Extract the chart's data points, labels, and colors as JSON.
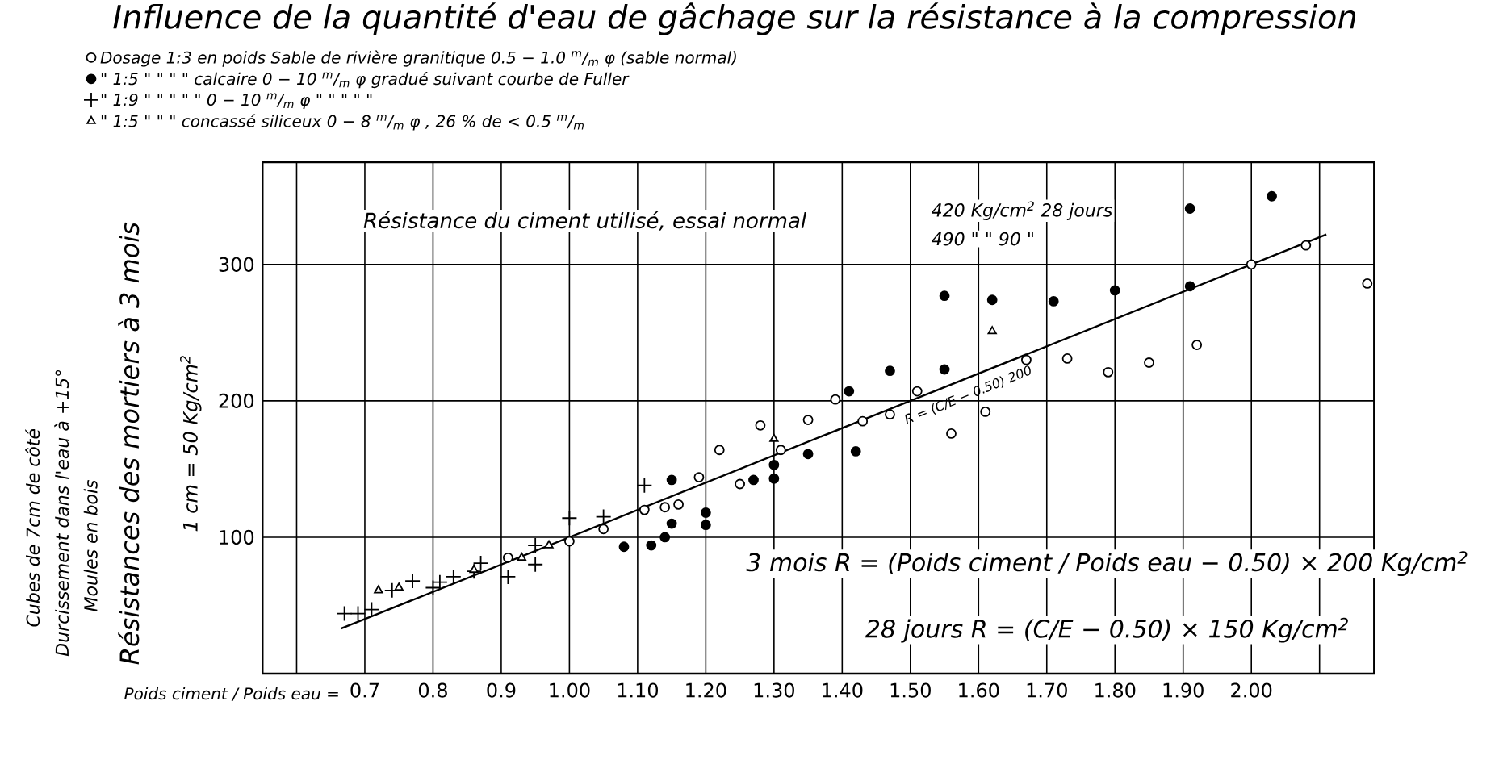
{
  "chart_data": {
    "type": "scatter",
    "title": "Influence de la quantité d'eau de gâchage sur la résistance à la compression",
    "xlabel": "Poids ciment / Poids eau =",
    "ylabel": "Résistances des mortiers à 3 mois",
    "series": [
      {
        "name": "Dosage 1:3 en poids   Sable de rivière granitique   0.5 − 1.0 $^{m}$/$_{m}$ φ   (sable normal)",
        "color": "#000000",
        "marker": "circle",
        "x": [
          0.91,
          1.0,
          1.05,
          1.11,
          1.14,
          1.16,
          1.19,
          1.22,
          1.25,
          1.28,
          1.31,
          1.35,
          1.39,
          1.43,
          1.47,
          1.51,
          1.56,
          1.61,
          1.67,
          1.73,
          1.79,
          1.85,
          1.92,
          2.0,
          2.08,
          2.17
        ],
        "values": [
          85,
          97,
          106,
          120,
          122,
          124,
          144,
          164,
          139,
          182,
          164,
          186,
          201,
          185,
          190,
          207,
          176,
          192,
          230,
          231,
          221,
          228,
          241,
          300,
          314,
          286
        ]
      },
      {
        "name": "\"   1:5   \"   \"   \"   \"   calcaire   0 − 10 $^{m}$/$_{m}$ φ   gradué suivant courbe de Fuller",
        "color": "#000000",
        "marker": "circle",
        "x": [
          1.08,
          1.12,
          1.14,
          1.15,
          1.15,
          1.2,
          1.2,
          1.27,
          1.3,
          1.3,
          1.35,
          1.41,
          1.42,
          1.47,
          1.55,
          1.55,
          1.62,
          1.71,
          1.8,
          1.91,
          1.91,
          2.03
        ],
        "values": [
          93,
          94,
          100,
          142,
          110,
          118,
          109,
          142,
          153,
          143,
          161,
          207,
          163,
          222,
          223,
          277,
          274,
          273,
          281,
          284,
          341,
          350
        ]
      },
      {
        "name": "\"   1:9   \"   \"   \"   \"   \"   0 − 10 $^{m}$/$_{m}$ φ   \"   \"   \"   \"   \"",
        "color": "#000000",
        "marker": "cross",
        "x": [
          0.67,
          0.69,
          0.71,
          0.74,
          0.77,
          0.8,
          0.81,
          0.83,
          0.86,
          0.87,
          0.91,
          0.95,
          0.95,
          1.0,
          1.05,
          1.11
        ],
        "values": [
          44,
          44,
          47,
          61,
          68,
          63,
          67,
          71,
          75,
          81,
          71,
          94,
          80,
          114,
          115,
          138
        ]
      },
      {
        "name": "\"   1:5   \"   \"   \"   concassé siliceux   0 − 8 $^{m}$/$_{m}$ φ ,  26 % de < 0.5 $^{m}$/$_{m}$",
        "color": "#000000",
        "marker": "triangle",
        "x": [
          0.72,
          0.75,
          0.86,
          0.93,
          0.97,
          1.3,
          1.62
        ],
        "values": [
          61,
          63,
          76,
          85,
          94,
          172,
          251
        ]
      },
      {
        "type": "line",
        "color": "#000000",
        "marker": "none",
        "x": [
          0.665,
          2.11
        ],
        "values": [
          33,
          322
        ]
      }
    ],
    "xlim": [
      0.55,
      2.18
    ],
    "ylim": [
      0,
      375
    ],
    "xticks": [
      {
        "value": 0.55,
        "label": null
      },
      {
        "value": 0.6,
        "label": null
      },
      {
        "value": 0.7,
        "label": "0.7"
      },
      {
        "value": 0.8,
        "label": "0.8"
      },
      {
        "value": 0.9,
        "label": "0.9"
      },
      {
        "value": 1.0,
        "label": "1.00"
      },
      {
        "value": 1.1,
        "label": "1.10"
      },
      {
        "value": 1.2,
        "label": "1.20"
      },
      {
        "value": 1.3,
        "label": "1.30"
      },
      {
        "value": 1.4,
        "label": "1.40"
      },
      {
        "value": 1.5,
        "label": "1.50"
      },
      {
        "value": 1.6,
        "label": "1.60"
      },
      {
        "value": 1.7,
        "label": "1.70"
      },
      {
        "value": 1.8,
        "label": "1.80"
      },
      {
        "value": 1.9,
        "label": "1.90"
      },
      {
        "value": 2.0,
        "label": "2.00"
      },
      {
        "value": 2.1,
        "label": null
      }
    ],
    "yticks": [
      100,
      200,
      300
    ],
    "grid": true,
    "legend": "top",
    "annotations": [
      "Résistance du ciment utilisé, essai normal",
      "420 Kg/cm$^{2}$ 28 jours",
      "490  \"  \"  90  \"",
      "R = (C/E − 0.50) 200",
      "3 mois   R = (Poids ciment / Poids eau − 0.50) × 200 Kg/cm$^{2}$",
      "28 jours   R = (C/E − 0.50) × 150 Kg/cm$^{2}$",
      "1 cm = 50 Kg/cm$^{2}$",
      "Cubes de 7cm de côté",
      "Durcissement dans l'eau à +15°",
      "Moules en bois"
    ]
  }
}
